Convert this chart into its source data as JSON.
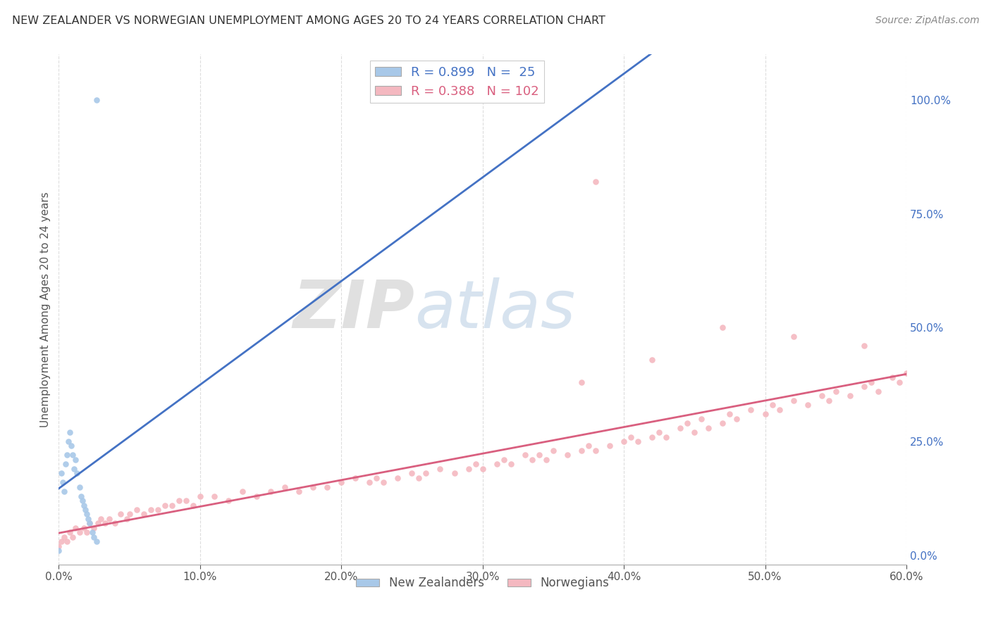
{
  "title": "NEW ZEALANDER VS NORWEGIAN UNEMPLOYMENT AMONG AGES 20 TO 24 YEARS CORRELATION CHART",
  "source": "Source: ZipAtlas.com",
  "ylabel": "Unemployment Among Ages 20 to 24 years",
  "xlim": [
    0.0,
    0.6
  ],
  "ylim": [
    -0.02,
    1.1
  ],
  "xticks": [
    0.0,
    0.1,
    0.2,
    0.3,
    0.4,
    0.5,
    0.6
  ],
  "xticklabels": [
    "0.0%",
    "10.0%",
    "20.0%",
    "30.0%",
    "40.0%",
    "50.0%",
    "60.0%"
  ],
  "yticks_right": [
    0.0,
    0.25,
    0.5,
    0.75,
    1.0
  ],
  "yticklabels_right": [
    "0.0%",
    "25.0%",
    "50.0%",
    "75.0%",
    "100.0%"
  ],
  "nz_color": "#a8c8e8",
  "no_color": "#f4b8c0",
  "nz_line_color": "#4472c4",
  "no_line_color": "#d95f7f",
  "nz_R": 0.899,
  "nz_N": 25,
  "no_R": 0.388,
  "no_N": 102,
  "watermark_zip": "ZIP",
  "watermark_atlas": "atlas",
  "background_color": "#ffffff",
  "grid_color": "#dddddd",
  "nz_scatter_x": [
    0.0,
    0.002,
    0.003,
    0.004,
    0.005,
    0.006,
    0.007,
    0.008,
    0.009,
    0.01,
    0.011,
    0.012,
    0.013,
    0.015,
    0.016,
    0.017,
    0.018,
    0.019,
    0.02,
    0.021,
    0.022,
    0.024,
    0.025,
    0.027,
    0.027
  ],
  "nz_scatter_y": [
    0.01,
    0.18,
    0.16,
    0.14,
    0.2,
    0.22,
    0.25,
    0.27,
    0.24,
    0.22,
    0.19,
    0.21,
    0.18,
    0.15,
    0.13,
    0.12,
    0.11,
    0.1,
    0.09,
    0.08,
    0.07,
    0.05,
    0.04,
    0.03,
    1.0
  ],
  "no_scatter_x": [
    0.0,
    0.002,
    0.004,
    0.006,
    0.008,
    0.01,
    0.012,
    0.015,
    0.018,
    0.02,
    0.022,
    0.025,
    0.028,
    0.03,
    0.033,
    0.036,
    0.04,
    0.044,
    0.048,
    0.05,
    0.055,
    0.06,
    0.065,
    0.07,
    0.075,
    0.08,
    0.085,
    0.09,
    0.095,
    0.1,
    0.11,
    0.12,
    0.13,
    0.14,
    0.15,
    0.16,
    0.17,
    0.18,
    0.19,
    0.2,
    0.21,
    0.22,
    0.225,
    0.23,
    0.24,
    0.25,
    0.255,
    0.26,
    0.27,
    0.28,
    0.29,
    0.295,
    0.3,
    0.31,
    0.315,
    0.32,
    0.33,
    0.335,
    0.34,
    0.345,
    0.35,
    0.36,
    0.37,
    0.375,
    0.38,
    0.39,
    0.4,
    0.405,
    0.41,
    0.42,
    0.425,
    0.43,
    0.44,
    0.445,
    0.45,
    0.455,
    0.46,
    0.47,
    0.475,
    0.48,
    0.49,
    0.5,
    0.505,
    0.51,
    0.52,
    0.53,
    0.54,
    0.545,
    0.55,
    0.56,
    0.57,
    0.575,
    0.58,
    0.59,
    0.595,
    0.6,
    0.37,
    0.42,
    0.47,
    0.52,
    0.57,
    0.38
  ],
  "no_scatter_y": [
    0.02,
    0.03,
    0.04,
    0.03,
    0.05,
    0.04,
    0.06,
    0.05,
    0.06,
    0.05,
    0.07,
    0.06,
    0.07,
    0.08,
    0.07,
    0.08,
    0.07,
    0.09,
    0.08,
    0.09,
    0.1,
    0.09,
    0.1,
    0.1,
    0.11,
    0.11,
    0.12,
    0.12,
    0.11,
    0.13,
    0.13,
    0.12,
    0.14,
    0.13,
    0.14,
    0.15,
    0.14,
    0.15,
    0.15,
    0.16,
    0.17,
    0.16,
    0.17,
    0.16,
    0.17,
    0.18,
    0.17,
    0.18,
    0.19,
    0.18,
    0.19,
    0.2,
    0.19,
    0.2,
    0.21,
    0.2,
    0.22,
    0.21,
    0.22,
    0.21,
    0.23,
    0.22,
    0.23,
    0.24,
    0.23,
    0.24,
    0.25,
    0.26,
    0.25,
    0.26,
    0.27,
    0.26,
    0.28,
    0.29,
    0.27,
    0.3,
    0.28,
    0.29,
    0.31,
    0.3,
    0.32,
    0.31,
    0.33,
    0.32,
    0.34,
    0.33,
    0.35,
    0.34,
    0.36,
    0.35,
    0.37,
    0.38,
    0.36,
    0.39,
    0.38,
    0.4,
    0.38,
    0.43,
    0.5,
    0.48,
    0.46,
    0.82
  ]
}
